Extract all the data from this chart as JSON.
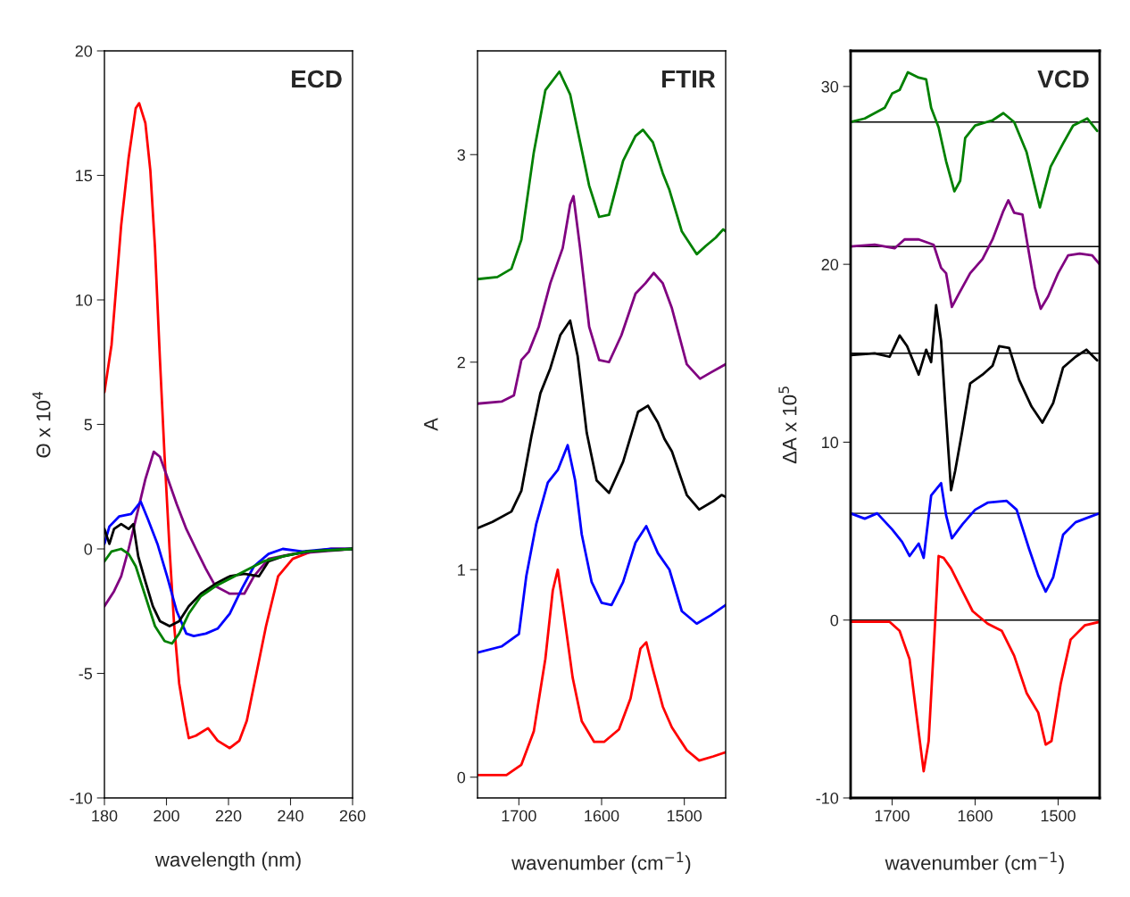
{
  "chart_data": [
    {
      "type": "line",
      "title": "ECD",
      "xlabel": "wavelength (nm)",
      "ylabel": "Θ x 10$^{4}$",
      "xlim": [
        180,
        260
      ],
      "ylim": [
        -10,
        20
      ],
      "xticks": [
        180,
        200,
        220,
        240,
        260
      ],
      "yticks": [
        -10,
        -5,
        0,
        5,
        10,
        15,
        20
      ],
      "series": [
        {
          "color": "#ff0000",
          "x": [
            180,
            182.3,
            185.4,
            187.8,
            190.1,
            191.2,
            193.2,
            194.8,
            196.3,
            197.9,
            199.4,
            201,
            202.5,
            204.1,
            206.1,
            207.2,
            209.5,
            213.4,
            216.5,
            220.4,
            223.5,
            225.9,
            229,
            232.1,
            236,
            240.7,
            246.9,
            253.1,
            260
          ],
          "values": [
            6.3,
            8.2,
            13.0,
            15.7,
            17.7,
            17.9,
            17.1,
            15.2,
            12.1,
            7.6,
            3.7,
            0,
            -3.1,
            -5.4,
            -6.9,
            -7.6,
            -7.5,
            -7.2,
            -7.7,
            -8.0,
            -7.7,
            -6.9,
            -5.0,
            -3.1,
            -1.1,
            -0.4,
            -0.1,
            0,
            0
          ]
        },
        {
          "color": "#800080",
          "x": [
            180,
            183.1,
            185.4,
            187.8,
            190.9,
            193.2,
            195.9,
            197.9,
            200.2,
            203.3,
            206.4,
            209.5,
            212.7,
            215.8,
            220.4,
            225.1,
            228.2,
            232.9,
            240.7,
            250,
            260
          ],
          "values": [
            -2.3,
            -1.7,
            -1.1,
            0,
            1.6,
            2.8,
            3.9,
            3.7,
            2.9,
            1.8,
            0.8,
            0,
            -0.8,
            -1.5,
            -1.8,
            -1.8,
            -1.1,
            -0.4,
            -0.2,
            -0.1,
            0
          ]
        },
        {
          "color": "#0000ff",
          "x": [
            180,
            181.6,
            184.7,
            188.6,
            191.7,
            194,
            197.1,
            200.2,
            203.3,
            206.4,
            208.8,
            212.7,
            216.5,
            220.4,
            224.3,
            228.2,
            232.9,
            237.5,
            243.8,
            253.1,
            260
          ],
          "values": [
            0.2,
            0.9,
            1.3,
            1.4,
            1.9,
            1.2,
            0.2,
            -1.1,
            -2.5,
            -3.4,
            -3.5,
            -3.4,
            -3.2,
            -2.6,
            -1.6,
            -0.7,
            -0.2,
            0,
            -0.1,
            0,
            0
          ]
        },
        {
          "color": "#000000",
          "x": [
            180,
            181.6,
            183.1,
            185.4,
            187.8,
            189.3,
            190.9,
            193.2,
            195.6,
            197.9,
            201,
            204.1,
            207.2,
            211.1,
            215.8,
            220.4,
            225.1,
            229.8,
            232.9,
            237.5,
            245.3,
            260
          ],
          "values": [
            0.8,
            0.2,
            0.8,
            1.0,
            0.8,
            1.0,
            -0.3,
            -1.3,
            -2.3,
            -2.9,
            -3.1,
            -2.9,
            -2.3,
            -1.8,
            -1.4,
            -1.1,
            -1.0,
            -1.1,
            -0.5,
            -0.3,
            -0.1,
            0
          ]
        },
        {
          "color": "#008000",
          "x": [
            180,
            182.3,
            185.4,
            187.8,
            190.1,
            193.2,
            196.3,
            199.4,
            201.8,
            204.1,
            207.2,
            211.1,
            215.8,
            220.4,
            225.1,
            231.3,
            237.5,
            245.3,
            260
          ],
          "values": [
            -0.5,
            -0.1,
            0,
            -0.2,
            -0.7,
            -1.9,
            -3.1,
            -3.7,
            -3.8,
            -3.4,
            -2.6,
            -1.9,
            -1.5,
            -1.2,
            -0.9,
            -0.5,
            -0.3,
            -0.1,
            0
          ]
        }
      ]
    },
    {
      "type": "line",
      "title": "FTIR",
      "xlabel": "wavenumber (cm$^{−1}$)",
      "ylabel": "A",
      "xlim": [
        1750,
        1450
      ],
      "ylim": [
        -0.1,
        3.5
      ],
      "xticks": [
        1700,
        1600,
        1500
      ],
      "yticks": [
        0,
        1,
        2,
        3
      ],
      "series": [
        {
          "color": "#008000",
          "x": [
            1750,
            1726,
            1709,
            1697,
            1682,
            1668,
            1651,
            1638,
            1626,
            1615,
            1603,
            1591,
            1574,
            1559,
            1550,
            1538,
            1526,
            1518,
            1503,
            1485,
            1474,
            1462,
            1453,
            1450
          ],
          "values": [
            2.4,
            2.41,
            2.45,
            2.59,
            3.01,
            3.31,
            3.4,
            3.29,
            3.06,
            2.85,
            2.7,
            2.71,
            2.97,
            3.09,
            3.12,
            3.06,
            2.91,
            2.83,
            2.63,
            2.52,
            2.56,
            2.6,
            2.64,
            2.63
          ]
        },
        {
          "color": "#800080",
          "x": [
            1750,
            1721,
            1706,
            1697,
            1688,
            1676,
            1662,
            1647,
            1638,
            1634,
            1626,
            1615,
            1603,
            1591,
            1576,
            1559,
            1547,
            1537,
            1526,
            1515,
            1497,
            1481,
            1468,
            1450
          ],
          "values": [
            1.8,
            1.81,
            1.84,
            2.01,
            2.05,
            2.17,
            2.38,
            2.55,
            2.76,
            2.8,
            2.55,
            2.17,
            2.01,
            2.0,
            2.13,
            2.33,
            2.38,
            2.43,
            2.38,
            2.26,
            1.99,
            1.92,
            1.95,
            1.99
          ]
        },
        {
          "color": "#000000",
          "x": [
            1750,
            1732,
            1709,
            1697,
            1685,
            1674,
            1662,
            1650,
            1638,
            1629,
            1618,
            1606,
            1591,
            1574,
            1556,
            1544,
            1532,
            1524,
            1515,
            1497,
            1482,
            1465,
            1455,
            1450
          ],
          "values": [
            1.2,
            1.23,
            1.28,
            1.38,
            1.64,
            1.85,
            1.97,
            2.13,
            2.2,
            2.03,
            1.66,
            1.43,
            1.37,
            1.52,
            1.76,
            1.79,
            1.71,
            1.63,
            1.57,
            1.36,
            1.29,
            1.33,
            1.36,
            1.35
          ]
        },
        {
          "color": "#0000ff",
          "x": [
            1750,
            1721,
            1700,
            1691,
            1679,
            1665,
            1653,
            1641,
            1632,
            1624,
            1612,
            1600,
            1588,
            1574,
            1559,
            1546,
            1532,
            1518,
            1503,
            1485,
            1468,
            1450
          ],
          "values": [
            0.6,
            0.63,
            0.69,
            0.97,
            1.22,
            1.42,
            1.48,
            1.6,
            1.43,
            1.17,
            0.94,
            0.84,
            0.83,
            0.94,
            1.13,
            1.21,
            1.08,
            1.0,
            0.8,
            0.74,
            0.78,
            0.83
          ]
        },
        {
          "color": "#ff0000",
          "x": [
            1750,
            1715,
            1697,
            1682,
            1668,
            1659,
            1653,
            1647,
            1635,
            1624,
            1609,
            1597,
            1579,
            1565,
            1553,
            1546,
            1538,
            1526,
            1515,
            1497,
            1482,
            1465,
            1450
          ],
          "values": [
            0.01,
            0.01,
            0.06,
            0.22,
            0.57,
            0.9,
            1.0,
            0.83,
            0.48,
            0.27,
            0.17,
            0.17,
            0.23,
            0.38,
            0.62,
            0.65,
            0.52,
            0.34,
            0.24,
            0.13,
            0.08,
            0.1,
            0.12
          ]
        }
      ]
    },
    {
      "type": "line",
      "title": "VCD",
      "xlabel": "wavenumber (cm$^{−1}$)",
      "ylabel": "ΔA x 10$^{5}$",
      "xlim": [
        1750,
        1450
      ],
      "ylim": [
        -10,
        32
      ],
      "xticks": [
        1700,
        1600,
        1500
      ],
      "yticks": [
        -10,
        0,
        10,
        20,
        30
      ],
      "ref_lines": [
        {
          "axis": "y",
          "value": 28,
          "color": "#000000"
        },
        {
          "axis": "y",
          "value": 21,
          "color": "#000000"
        },
        {
          "axis": "y",
          "value": 15,
          "color": "#000000"
        },
        {
          "axis": "y",
          "value": 6,
          "color": "#000000"
        },
        {
          "axis": "y",
          "value": 0,
          "color": "#000000"
        }
      ],
      "series": [
        {
          "color": "#008000",
          "x": [
            1750,
            1733,
            1709,
            1700,
            1691,
            1681,
            1668,
            1659,
            1653,
            1644,
            1635,
            1625,
            1618,
            1612,
            1600,
            1579,
            1566,
            1553,
            1538,
            1522,
            1509,
            1494,
            1482,
            1465,
            1453
          ],
          "values": [
            28,
            28.2,
            28.8,
            29.6,
            29.8,
            30.8,
            30.5,
            30.4,
            28.8,
            27.7,
            25.8,
            24.1,
            24.7,
            27.1,
            27.8,
            28.1,
            28.5,
            28.0,
            26.3,
            23.2,
            25.5,
            26.8,
            27.8,
            28.2,
            27.5
          ]
        },
        {
          "color": "#800080",
          "x": [
            1750,
            1721,
            1697,
            1685,
            1668,
            1650,
            1641,
            1635,
            1628,
            1619,
            1606,
            1591,
            1579,
            1566,
            1560,
            1553,
            1543,
            1535,
            1528,
            1521,
            1512,
            1500,
            1488,
            1474,
            1459,
            1450
          ],
          "values": [
            21.0,
            21.1,
            20.9,
            21.4,
            21.4,
            21.1,
            19.8,
            19.5,
            17.6,
            18.4,
            19.5,
            20.3,
            21.4,
            23.0,
            23.6,
            22.9,
            22.8,
            20.6,
            18.7,
            17.5,
            18.2,
            19.5,
            20.5,
            20.6,
            20.5,
            20.0
          ]
        },
        {
          "color": "#000000",
          "x": [
            1750,
            1721,
            1703,
            1691,
            1682,
            1668,
            1659,
            1653,
            1647,
            1641,
            1635,
            1629,
            1624,
            1616,
            1606,
            1591,
            1579,
            1571,
            1559,
            1547,
            1532,
            1519,
            1506,
            1494,
            1479,
            1466,
            1453
          ],
          "values": [
            14.9,
            15.0,
            14.8,
            16.0,
            15.4,
            13.8,
            15.2,
            14.5,
            17.7,
            15.7,
            11.4,
            7.3,
            8.4,
            10.5,
            13.3,
            13.8,
            14.3,
            15.4,
            15.3,
            13.5,
            12.0,
            11.1,
            12.2,
            14.2,
            14.8,
            15.2,
            14.6
          ]
        },
        {
          "color": "#0000ff",
          "x": [
            1750,
            1733,
            1718,
            1700,
            1688,
            1679,
            1668,
            1662,
            1653,
            1641,
            1635,
            1628,
            1615,
            1600,
            1585,
            1562,
            1550,
            1535,
            1524,
            1515,
            1506,
            1494,
            1479,
            1462,
            1450
          ],
          "values": [
            6.0,
            5.7,
            6.0,
            5.1,
            4.4,
            3.6,
            4.3,
            3.5,
            7.0,
            7.7,
            5.9,
            4.6,
            5.4,
            6.2,
            6.6,
            6.7,
            6.2,
            4.0,
            2.5,
            1.6,
            2.4,
            4.8,
            5.5,
            5.8,
            6.0
          ]
        },
        {
          "color": "#ff0000",
          "x": [
            1750,
            1721,
            1703,
            1691,
            1679,
            1671,
            1662,
            1656,
            1650,
            1644,
            1638,
            1629,
            1615,
            1603,
            1585,
            1568,
            1553,
            1538,
            1524,
            1515,
            1508,
            1497,
            1485,
            1468,
            1450
          ],
          "values": [
            -0.1,
            -0.1,
            -0.1,
            -0.6,
            -2.2,
            -5.2,
            -8.5,
            -6.8,
            -1.7,
            3.6,
            3.5,
            2.9,
            1.6,
            0.5,
            -0.2,
            -0.6,
            -2.0,
            -4.1,
            -5.2,
            -7.0,
            -6.8,
            -3.6,
            -1.1,
            -0.3,
            -0.1
          ]
        }
      ]
    }
  ]
}
